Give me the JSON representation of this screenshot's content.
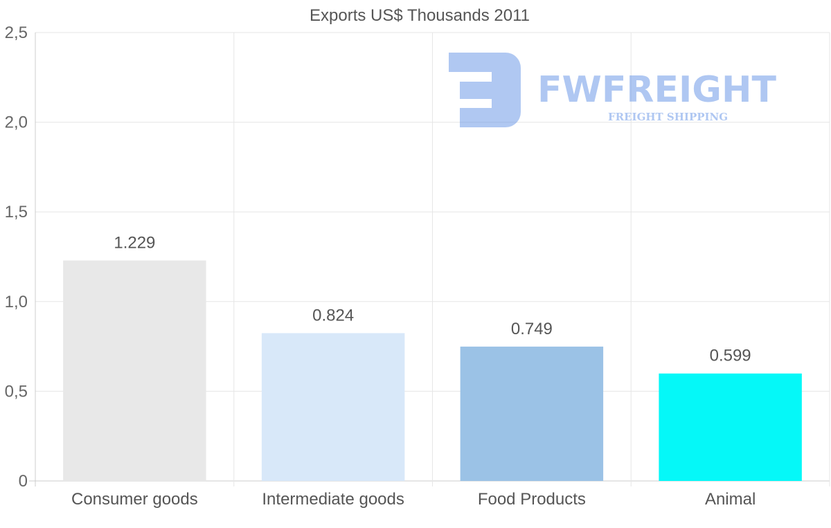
{
  "chart_data": {
    "type": "bar",
    "title": "Exports US$ Thousands 2011",
    "categories": [
      "Consumer goods",
      "Intermediate goods",
      "Food Products",
      "Animal"
    ],
    "values": [
      1.229,
      0.824,
      0.749,
      0.599
    ],
    "value_labels": [
      "1.229",
      "0.824",
      "0.749",
      "0.599"
    ],
    "colors": [
      "#e8e8e8",
      "#d8e8f9",
      "#9bc2e6",
      "#05f8f8"
    ],
    "ylim": [
      0,
      2.5
    ],
    "yticks": [
      0,
      0.5,
      1.0,
      1.5,
      2.0,
      2.5
    ],
    "ytick_labels": [
      "0",
      "0,5",
      "1,0",
      "1,5",
      "2,0",
      "2,5"
    ],
    "xlabel": "",
    "ylabel": "",
    "grid": true,
    "legend": "none"
  },
  "watermark": {
    "brand": "FWFREIGHT",
    "tagline": "FREIGHT SHIPPING",
    "color": "#6f9be8"
  }
}
